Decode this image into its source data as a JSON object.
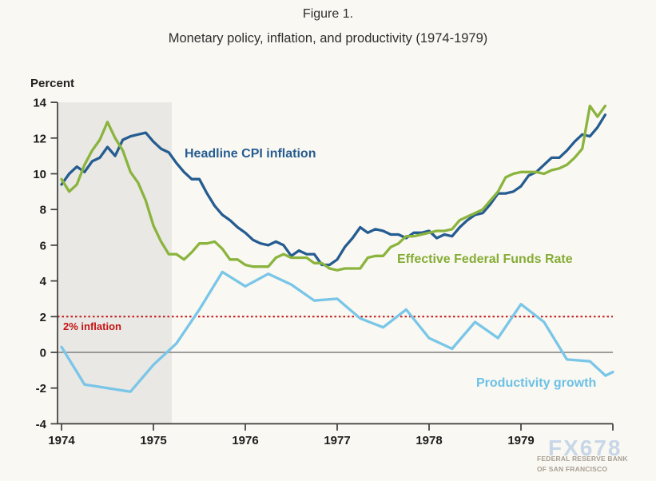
{
  "figure": {
    "label": "Figure 1.",
    "title": "Monetary policy, inflation, and productivity (1974-1979)"
  },
  "watermark": {
    "logo": "FX678",
    "line1": "FEDERAL RESERVE BANK",
    "line2": "OF SAN FRANCISCO"
  },
  "chart_data": {
    "type": "line",
    "title": "Monetary policy, inflation, and productivity (1974-1979)",
    "xlabel": "",
    "ylabel": "Percent",
    "ylim": [
      -4,
      14
    ],
    "xlim": [
      1974,
      1980
    ],
    "y_ticks": [
      14,
      12,
      10,
      8,
      6,
      4,
      2,
      0,
      -2,
      -4
    ],
    "x_tick_labels": [
      "1974",
      "1975",
      "1976",
      "1977",
      "1978",
      "1979"
    ],
    "grid": false,
    "legend_position": "inline-labels",
    "colors": {
      "background": "#faf8f2",
      "recession_band": "#e9e8e4",
      "axis": "#3d3d3d",
      "tick_text": "#1d1d1d",
      "zero_line": "#7f7f7f",
      "target_line": "#c41414"
    },
    "recession_shading": {
      "x_start": 1974.0,
      "x_end": 1975.2
    },
    "reference_lines": [
      {
        "label": "2% inflation",
        "y": 2,
        "style": "dotted",
        "color": "#c41414"
      },
      {
        "label": "",
        "y": 0,
        "style": "solid",
        "color": "#7f7f7f"
      }
    ],
    "series": [
      {
        "name": "Headline CPI inflation",
        "color": "#255c91",
        "frequency": "monthly",
        "x_start": 1974.0,
        "values": [
          9.4,
          10.0,
          10.4,
          10.1,
          10.7,
          10.9,
          11.5,
          11.0,
          11.9,
          12.1,
          12.2,
          12.3,
          11.8,
          11.4,
          11.2,
          10.6,
          10.1,
          9.7,
          9.7,
          8.9,
          8.2,
          7.7,
          7.4,
          7.0,
          6.7,
          6.3,
          6.1,
          6.0,
          6.2,
          6.0,
          5.4,
          5.7,
          5.5,
          5.5,
          4.9,
          4.9,
          5.2,
          5.9,
          6.4,
          7.0,
          6.7,
          6.9,
          6.8,
          6.6,
          6.6,
          6.4,
          6.7,
          6.7,
          6.8,
          6.4,
          6.6,
          6.5,
          7.0,
          7.4,
          7.7,
          7.8,
          8.3,
          8.9,
          8.9,
          9.0,
          9.3,
          9.9,
          10.1,
          10.5,
          10.9,
          10.9,
          11.3,
          11.8,
          12.2,
          12.1,
          12.6,
          13.3
        ]
      },
      {
        "name": "Effective Federal Funds Rate",
        "color": "#8ab43e",
        "frequency": "monthly",
        "x_start": 1974.0,
        "values": [
          9.7,
          9.0,
          9.4,
          10.5,
          11.3,
          11.9,
          12.9,
          12.0,
          11.3,
          10.1,
          9.5,
          8.5,
          7.1,
          6.2,
          5.5,
          5.5,
          5.2,
          5.6,
          6.1,
          6.1,
          6.2,
          5.8,
          5.2,
          5.2,
          4.9,
          4.8,
          4.8,
          4.8,
          5.3,
          5.5,
          5.3,
          5.3,
          5.3,
          5.0,
          5.0,
          4.7,
          4.6,
          4.7,
          4.7,
          4.7,
          5.3,
          5.4,
          5.4,
          5.9,
          6.1,
          6.5,
          6.5,
          6.6,
          6.7,
          6.8,
          6.8,
          6.9,
          7.4,
          7.6,
          7.8,
          8.0,
          8.5,
          9.0,
          9.8,
          10.0,
          10.1,
          10.1,
          10.1,
          10.0,
          10.2,
          10.3,
          10.5,
          10.9,
          11.4,
          13.8,
          13.2,
          13.8
        ]
      },
      {
        "name": "Productivity growth",
        "color": "#79c6e8",
        "frequency": "quarterly",
        "x": [
          1974.0,
          1974.25,
          1974.5,
          1974.75,
          1975.0,
          1975.25,
          1975.5,
          1975.75,
          1976.0,
          1976.25,
          1976.5,
          1976.75,
          1977.0,
          1977.25,
          1977.5,
          1977.75,
          1978.0,
          1978.25,
          1978.5,
          1978.75,
          1979.0,
          1979.25,
          1979.5,
          1979.75,
          1979.92,
          1980.0
        ],
        "values": [
          0.3,
          -1.8,
          -2.0,
          -2.2,
          -0.7,
          0.5,
          2.4,
          4.5,
          3.7,
          4.4,
          3.8,
          2.9,
          3.0,
          1.9,
          1.4,
          2.4,
          0.8,
          0.2,
          1.7,
          0.8,
          2.7,
          1.7,
          -0.4,
          -0.5,
          -1.3,
          -1.1
        ]
      }
    ]
  }
}
